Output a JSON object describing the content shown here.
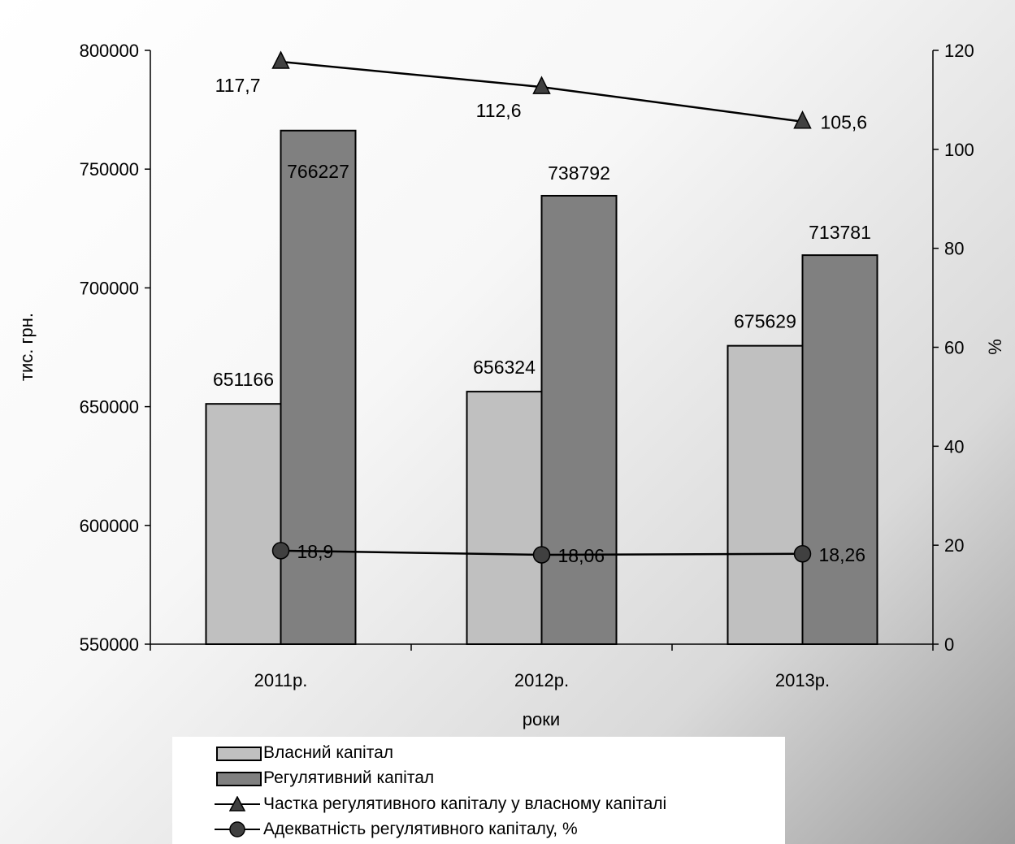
{
  "chart_data": {
    "type": "bar",
    "categories": [
      "2011р.",
      "2012р.",
      "2013р."
    ],
    "xlabel": "роки",
    "ylabel": "тис. грн.",
    "y2label": "%",
    "ylim": [
      550000,
      800000
    ],
    "yticks": [
      "550000",
      "600000",
      "650000",
      "700000",
      "750000",
      "800000"
    ],
    "y2lim": [
      0,
      120
    ],
    "y2ticks": [
      "0",
      "20",
      "40",
      "60",
      "80",
      "100",
      "120"
    ],
    "grid": false,
    "legend_position": "bottom",
    "series": [
      {
        "name": "Власний капітал",
        "type": "bar",
        "axis": "left",
        "color": "#c0c0c0",
        "values": [
          651166,
          656324,
          675629
        ],
        "labels": [
          "651166",
          "656324",
          "675629"
        ]
      },
      {
        "name": "Регулятивний капітал",
        "type": "bar",
        "axis": "left",
        "color": "#808080",
        "values": [
          766227,
          738792,
          713781
        ],
        "labels": [
          "766227",
          "738792",
          "713781"
        ]
      },
      {
        "name": "Частка регулятивного капіталу у власному капіталі",
        "type": "line",
        "marker": "triangle",
        "axis": "right",
        "color": "#404040",
        "values": [
          117.7,
          112.6,
          105.6
        ],
        "labels": [
          "117,7",
          "112,6",
          "105,6"
        ]
      },
      {
        "name": "Адекватність регулятивного капіталу, %",
        "type": "line",
        "marker": "circle",
        "axis": "right",
        "color": "#404040",
        "values": [
          18.9,
          18.06,
          18.26
        ],
        "labels": [
          "18,9",
          "18,06",
          "18,26"
        ]
      }
    ]
  }
}
